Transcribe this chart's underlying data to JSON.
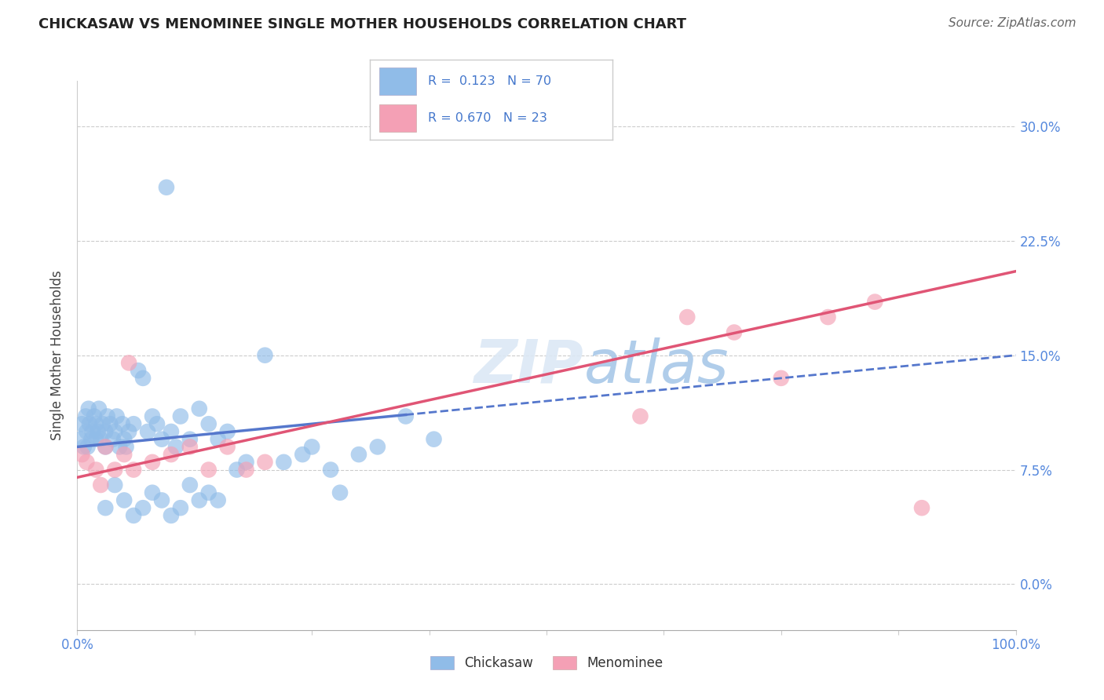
{
  "title": "CHICKASAW VS MENOMINEE SINGLE MOTHER HOUSEHOLDS CORRELATION CHART",
  "source_text": "Source: ZipAtlas.com",
  "ylabel": "Single Mother Households",
  "xlim": [
    0.0,
    100.0
  ],
  "ylim": [
    -3.0,
    33.0
  ],
  "yticks": [
    0.0,
    7.5,
    15.0,
    22.5,
    30.0
  ],
  "xticks": [
    0.0,
    12.5,
    25.0,
    37.5,
    50.0,
    62.5,
    75.0,
    87.5,
    100.0
  ],
  "chickasaw_color": "#90bce8",
  "menominee_color": "#f4a0b5",
  "chickasaw_line_color": "#5577cc",
  "menominee_line_color": "#e05575",
  "legend_r_chickasaw": "R =  0.123",
  "legend_n_chickasaw": "N = 70",
  "legend_r_menominee": "R = 0.670",
  "legend_n_menominee": "N = 23",
  "watermark_zip": "ZIP",
  "watermark_atlas": "atlas",
  "chickasaw_label": "Chickasaw",
  "menominee_label": "Menominee",
  "chickasaw_x": [
    0.3,
    0.5,
    0.7,
    0.9,
    1.0,
    1.1,
    1.2,
    1.3,
    1.5,
    1.6,
    1.8,
    2.0,
    2.0,
    2.2,
    2.3,
    2.5,
    2.7,
    3.0,
    3.0,
    3.2,
    3.5,
    3.8,
    4.0,
    4.2,
    4.5,
    4.8,
    5.0,
    5.2,
    5.5,
    6.0,
    6.5,
    7.0,
    7.5,
    8.0,
    8.5,
    9.0,
    10.0,
    10.5,
    11.0,
    12.0,
    13.0,
    14.0,
    15.0,
    16.0,
    17.0,
    18.0,
    20.0,
    22.0,
    24.0,
    25.0,
    27.0,
    28.0,
    30.0,
    32.0,
    35.0,
    38.0,
    3.0,
    4.0,
    5.0,
    6.0,
    7.0,
    8.0,
    9.0,
    10.0,
    11.0,
    12.0,
    13.0,
    14.0,
    15.0,
    9.5
  ],
  "chickasaw_y": [
    9.5,
    10.5,
    9.0,
    11.0,
    10.0,
    9.0,
    11.5,
    10.5,
    9.5,
    10.0,
    11.0,
    10.5,
    9.5,
    10.0,
    11.5,
    9.5,
    10.5,
    10.0,
    9.0,
    11.0,
    10.5,
    9.5,
    10.0,
    11.0,
    9.0,
    10.5,
    9.5,
    9.0,
    10.0,
    10.5,
    14.0,
    13.5,
    10.0,
    11.0,
    10.5,
    9.5,
    10.0,
    9.0,
    11.0,
    9.5,
    11.5,
    10.5,
    9.5,
    10.0,
    7.5,
    8.0,
    15.0,
    8.0,
    8.5,
    9.0,
    7.5,
    6.0,
    8.5,
    9.0,
    11.0,
    9.5,
    5.0,
    6.5,
    5.5,
    4.5,
    5.0,
    6.0,
    5.5,
    4.5,
    5.0,
    6.5,
    5.5,
    6.0,
    5.5,
    26.0
  ],
  "menominee_x": [
    0.5,
    1.0,
    2.0,
    3.0,
    5.0,
    6.0,
    8.0,
    10.0,
    12.0,
    14.0,
    16.0,
    18.0,
    20.0,
    60.0,
    65.0,
    70.0,
    75.0,
    80.0,
    85.0,
    90.0,
    2.5,
    4.0,
    5.5
  ],
  "menominee_y": [
    8.5,
    8.0,
    7.5,
    9.0,
    8.5,
    7.5,
    8.0,
    8.5,
    9.0,
    7.5,
    9.0,
    7.5,
    8.0,
    11.0,
    17.5,
    16.5,
    13.5,
    17.5,
    18.5,
    5.0,
    6.5,
    7.5,
    14.5
  ],
  "chick_line_x0": 0.0,
  "chick_line_y0": 9.0,
  "chick_line_x1": 35.0,
  "chick_line_y1": 11.0,
  "chick_line_x2": 100.0,
  "chick_line_y2": 15.0,
  "menom_line_x0": 0.0,
  "menom_line_y0": 7.0,
  "menom_line_x1": 100.0,
  "menom_line_y1": 20.5
}
